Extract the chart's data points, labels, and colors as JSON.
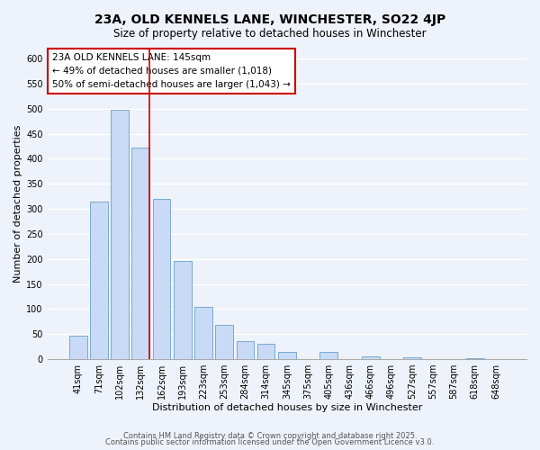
{
  "title": "23A, OLD KENNELS LANE, WINCHESTER, SO22 4JP",
  "subtitle": "Size of property relative to detached houses in Winchester",
  "xlabel": "Distribution of detached houses by size in Winchester",
  "ylabel": "Number of detached properties",
  "categories": [
    "41sqm",
    "71sqm",
    "102sqm",
    "132sqm",
    "162sqm",
    "193sqm",
    "223sqm",
    "253sqm",
    "284sqm",
    "314sqm",
    "345sqm",
    "375sqm",
    "405sqm",
    "436sqm",
    "466sqm",
    "496sqm",
    "527sqm",
    "557sqm",
    "587sqm",
    "618sqm",
    "648sqm"
  ],
  "values": [
    46,
    314,
    497,
    423,
    320,
    196,
    105,
    69,
    36,
    31,
    14,
    0,
    14,
    0,
    5,
    0,
    4,
    0,
    0,
    2,
    0
  ],
  "bar_color": "#c8daf5",
  "bar_edge_color": "#7aaad0",
  "vline_color": "#cc0000",
  "annotation_line1": "23A OLD KENNELS LANE: 145sqm",
  "annotation_line2": "← 49% of detached houses are smaller (1,018)",
  "annotation_line3": "50% of semi-detached houses are larger (1,043) →",
  "annotation_box_edge": "#cc0000",
  "ylim": [
    0,
    620
  ],
  "yticks": [
    0,
    50,
    100,
    150,
    200,
    250,
    300,
    350,
    400,
    450,
    500,
    550,
    600
  ],
  "footer1": "Contains HM Land Registry data © Crown copyright and database right 2025.",
  "footer2": "Contains public sector information licensed under the Open Government Licence v3.0.",
  "background_color": "#eef2fa",
  "grid_color": "#ffffff",
  "title_fontsize": 10,
  "subtitle_fontsize": 8.5,
  "axis_label_fontsize": 8,
  "tick_fontsize": 7,
  "annotation_fontsize": 7.5,
  "footer_fontsize": 6
}
